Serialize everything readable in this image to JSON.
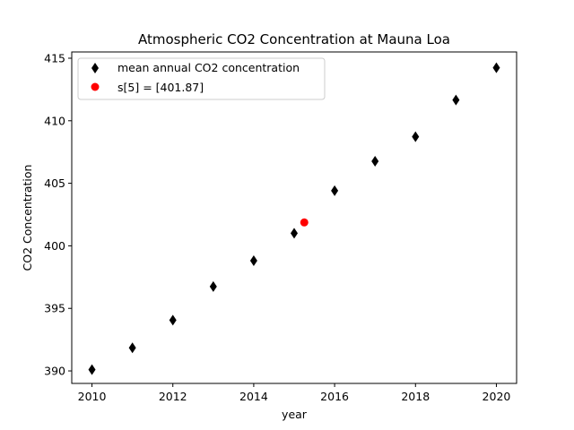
{
  "chart_data": {
    "type": "scatter",
    "title": "Atmospheric CO2 Concentration at Mauna Loa",
    "xlabel": "year",
    "ylabel": "CO2 Concentration",
    "xlim": [
      2009.5,
      2020.5
    ],
    "ylim": [
      389.0,
      415.5
    ],
    "x_ticks": [
      2010,
      2012,
      2014,
      2016,
      2018,
      2020
    ],
    "y_ticks": [
      390,
      395,
      400,
      405,
      410,
      415
    ],
    "grid": false,
    "legend_position": "top-left",
    "series": [
      {
        "name": "mean annual CO2 concentration",
        "marker": "diamond",
        "color": "#000000",
        "x": [
          2010,
          2011,
          2012,
          2013,
          2014,
          2015,
          2016,
          2017,
          2018,
          2019,
          2020
        ],
        "y": [
          390.1,
          391.85,
          394.06,
          396.74,
          398.81,
          401.01,
          404.41,
          406.76,
          408.72,
          411.66,
          414.24
        ]
      },
      {
        "name": "s[5] = [401.87]",
        "marker": "circle",
        "color": "#ff0000",
        "x": [
          2015.25
        ],
        "y": [
          401.87
        ]
      }
    ]
  }
}
